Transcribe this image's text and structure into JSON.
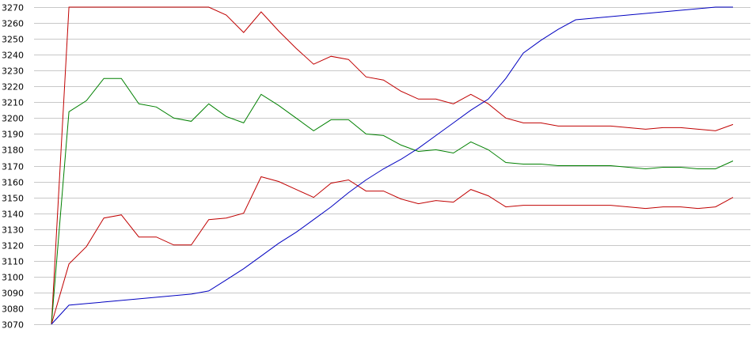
{
  "chart_data": {
    "type": "line",
    "title": "",
    "xlabel": "",
    "ylabel": "",
    "ylim": [
      3070,
      3270
    ],
    "yticks": [
      3070,
      3080,
      3090,
      3100,
      3110,
      3120,
      3130,
      3140,
      3150,
      3160,
      3170,
      3180,
      3190,
      3200,
      3210,
      3220,
      3230,
      3240,
      3250,
      3260,
      3270
    ],
    "grid": "horizontal",
    "legend": "none",
    "x": [
      0,
      1,
      2,
      3,
      4,
      5,
      6,
      7,
      8,
      9,
      10,
      11,
      12,
      13,
      14,
      15,
      16,
      17,
      18,
      19,
      20,
      21,
      22,
      23,
      24,
      25,
      26,
      27,
      28,
      29,
      30,
      31,
      32,
      33,
      34,
      35,
      36,
      37,
      38,
      39
    ],
    "series": [
      {
        "color": "#c00000",
        "values": [
          3070,
          3270,
          3270,
          3270,
          3270,
          3270,
          3270,
          3270,
          3270,
          3270,
          3265,
          3254,
          3267,
          3255,
          3244,
          3234,
          3239,
          3237,
          3226,
          3224,
          3217,
          3212,
          3212,
          3209,
          3215,
          3209,
          3200,
          3197,
          3197,
          3195,
          3195,
          3195,
          3195,
          3194,
          3193,
          3194,
          3194,
          3193,
          3192,
          3196
        ]
      },
      {
        "color": "#008000",
        "values": [
          3070,
          3204,
          3211,
          3225,
          3225,
          3209,
          3207,
          3200,
          3198,
          3209,
          3201,
          3197,
          3215,
          3208,
          3200,
          3192,
          3199,
          3199,
          3190,
          3189,
          3183,
          3179,
          3180,
          3178,
          3185,
          3180,
          3172,
          3171,
          3171,
          3170,
          3170,
          3170,
          3170,
          3169,
          3168,
          3169,
          3169,
          3168,
          3168,
          3173
        ]
      },
      {
        "color": "#c00000",
        "values": [
          3070,
          3108,
          3119,
          3137,
          3139,
          3125,
          3125,
          3120,
          3120,
          3136,
          3137,
          3140,
          3163,
          3160,
          3155,
          3150,
          3159,
          3161,
          3154,
          3154,
          3149,
          3146,
          3148,
          3147,
          3155,
          3151,
          3144,
          3145,
          3145,
          3145,
          3145,
          3145,
          3145,
          3144,
          3143,
          3144,
          3144,
          3143,
          3144,
          3150
        ]
      },
      {
        "color": "#0000c0",
        "values": [
          3070,
          3082,
          3083,
          3084,
          3085,
          3086,
          3087,
          3088,
          3089,
          3091,
          3098,
          3105,
          3113,
          3121,
          3128,
          3136,
          3144,
          3153,
          3161,
          3168,
          3174,
          3181,
          3189,
          3197,
          3205,
          3212,
          3225,
          3241,
          3249,
          3256,
          3262,
          3263,
          3264,
          3265,
          3266,
          3267,
          3268,
          3269,
          3270,
          3270
        ]
      }
    ]
  }
}
